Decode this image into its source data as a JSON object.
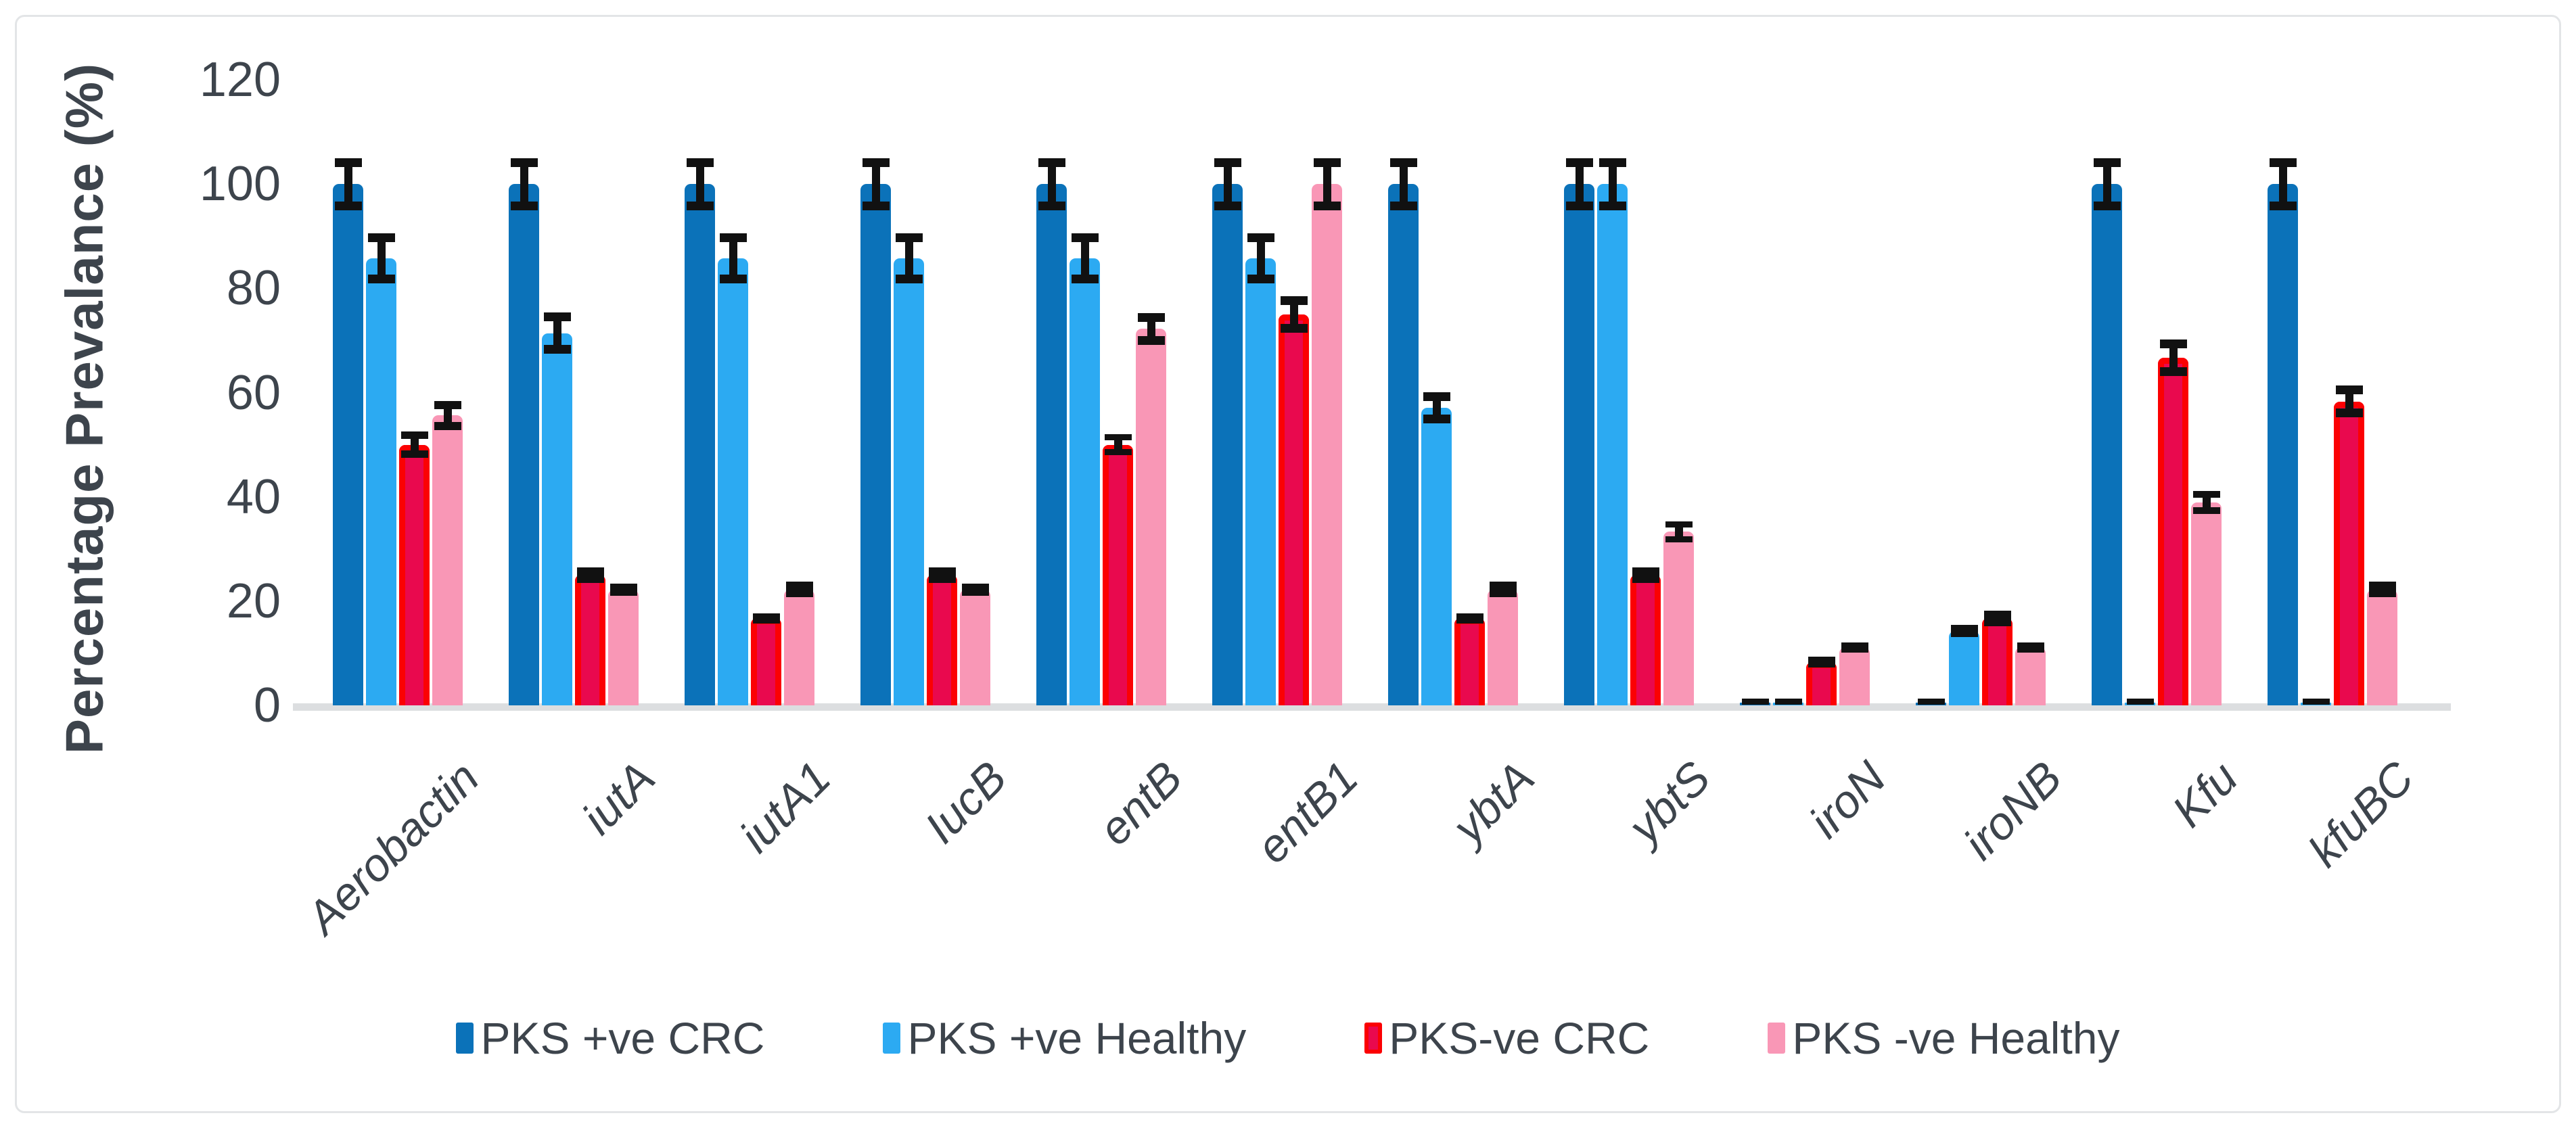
{
  "window": {
    "background": "#ffffff",
    "frame_border_color": "#e3e5e7"
  },
  "chart_data": {
    "type": "bar",
    "title": "",
    "ylabel": "Percentage Prevalance (%)",
    "xlabel": "",
    "ylim": [
      0,
      120
    ],
    "yticks": [
      0,
      20,
      40,
      60,
      80,
      100,
      120
    ],
    "grid": false,
    "legend_position": "bottom",
    "error_bars": true,
    "axis_text_color": "#3d444c",
    "error_bar_color": "#111111",
    "baseline_color": "#dcdee0",
    "categories": [
      "Aerobactin",
      "iutA",
      "iutA1",
      "IucB",
      "entB",
      "entB1",
      "ybtA",
      "ybtS",
      "iroN",
      "iroNB",
      "Kfu",
      "kfuBC"
    ],
    "series": [
      {
        "name": "PKS +ve CRC",
        "color": "#0b72b9",
        "values": [
          100,
          100,
          100,
          100,
          100,
          100,
          100,
          100,
          0.5,
          0.5,
          100,
          100
        ],
        "errors": [
          5,
          5,
          5,
          5,
          5,
          5,
          5,
          5,
          0.4,
          0.4,
          5,
          5
        ]
      },
      {
        "name": "PKS +ve Healthy",
        "color": "#2caaf2",
        "values": [
          85.7,
          71.4,
          85.7,
          85.7,
          85.7,
          85.7,
          57.1,
          100,
          0.5,
          14.3,
          0.5,
          0.5
        ],
        "errors": [
          4.8,
          4,
          4.8,
          4.8,
          4.8,
          4.8,
          3,
          5,
          0.4,
          1.2,
          0.4,
          0.4
        ]
      },
      {
        "name": "PKS-ve CRC",
        "color": "#e9094e",
        "border_color": "#fb0103",
        "values": [
          50,
          25,
          16.7,
          25,
          50,
          75,
          16.7,
          25,
          8.3,
          16.7,
          66.7,
          58.3
        ],
        "errors": [
          2.5,
          1.5,
          1,
          1.5,
          2,
          3.5,
          1,
          1.5,
          1,
          1.5,
          3.5,
          3
        ]
      },
      {
        "name": "PKS -ve Healthy",
        "color": "#f997b6",
        "values": [
          55.6,
          22.2,
          22.2,
          22.2,
          72.2,
          100,
          22.2,
          33.3,
          11.1,
          11.1,
          38.9,
          22.2
        ],
        "errors": [
          2.8,
          1.2,
          1.5,
          1.2,
          3,
          5,
          1.5,
          2,
          1,
          1,
          2.2,
          1.5
        ]
      }
    ]
  }
}
